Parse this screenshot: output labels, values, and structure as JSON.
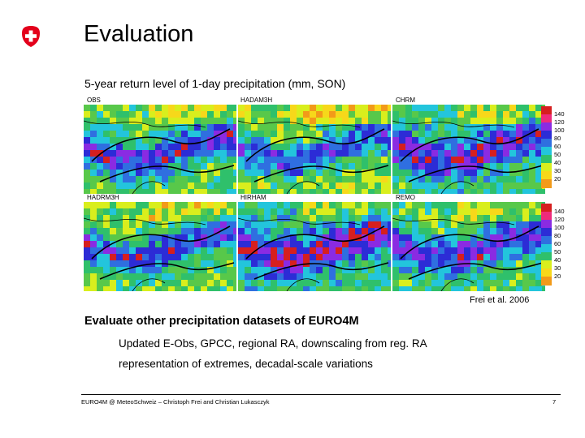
{
  "slide": {
    "title": "Evaluation",
    "subtitle": "5-year return level of 1-day precipitation (mm, SON)",
    "credit": "Frei et al. 2006",
    "section_heading": "Evaluate other precipitation datasets of EURO4M",
    "bullets": [
      "Updated E-Obs, GPCC, regional RA, downscaling from reg. RA",
      "representation of extremes, decadal-scale variations"
    ],
    "footer": "EURO4M @ MeteoSchweiz – Christoph Frei and Christian Lukasczyk",
    "page_number": "7"
  },
  "logo": {
    "name": "swiss-cross-logo",
    "colors": [
      "#e3001b",
      "#ffffff"
    ]
  },
  "figure": {
    "panels": [
      "OBS",
      "HADAM3H",
      "CHRM",
      "HADRM3H",
      "HIRHAM",
      "REMO"
    ],
    "legend_ticks": [
      "140",
      "120",
      "100",
      "80",
      "60",
      "50",
      "40",
      "30",
      "20"
    ],
    "legend_colors": [
      "#d61f1f",
      "#ee2a7b",
      "#8a2be2",
      "#2c2cd6",
      "#2f6fe0",
      "#23c5dc",
      "#2fc06b",
      "#d9ee1d",
      "#f7d81a",
      "#f29a19"
    ]
  }
}
